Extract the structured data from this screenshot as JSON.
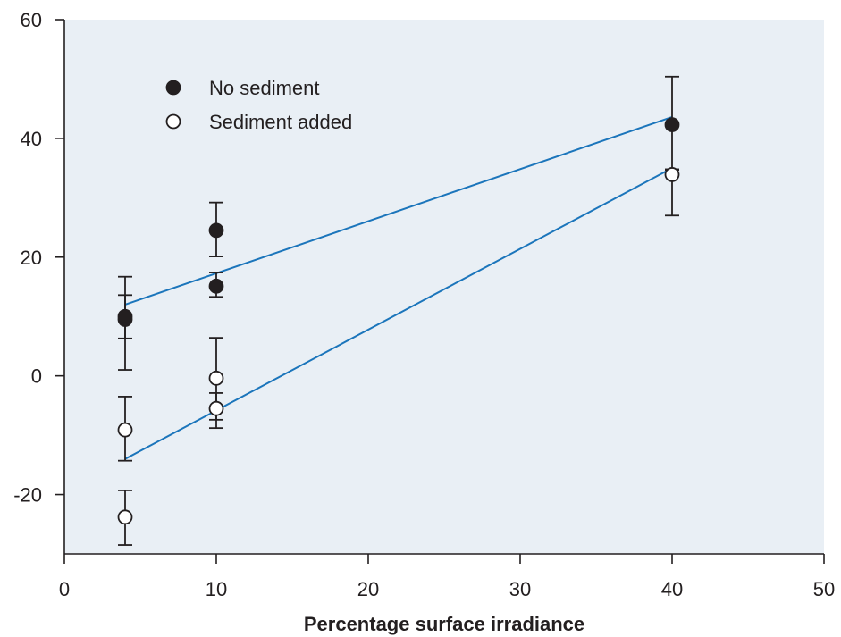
{
  "chart_data": {
    "type": "scatter",
    "title": "",
    "xlabel": "Percentage surface irradiance",
    "ylabel": "",
    "xlim": [
      0,
      50
    ],
    "ylim": [
      -30,
      60
    ],
    "xticks": [
      0,
      10,
      20,
      30,
      40,
      50
    ],
    "yticks": [
      60,
      40,
      20,
      0,
      -20
    ],
    "x_tick_labels": [
      "0",
      "10",
      "20",
      "30",
      "40",
      "50"
    ],
    "y_tick_labels": [
      "60",
      "40",
      "20",
      "0",
      "-20"
    ],
    "grid": false,
    "legend_position": "top-left",
    "colors": {
      "plot_background": "#e9eff5",
      "axis": "#231f20",
      "fit_line": "#1b75bb",
      "marker": "#231f20",
      "open_marker_fill": "#ffffff"
    },
    "series": [
      {
        "name": "No sediment",
        "marker": "filled-circle",
        "points": [
          {
            "x": 4,
            "y": 9.5,
            "err_low": 1.0,
            "err_high": 16.7
          },
          {
            "x": 4,
            "y": 10.0,
            "err_low": 6.3,
            "err_high": 13.6
          },
          {
            "x": 10,
            "y": 24.5,
            "err_low": 20.1,
            "err_high": 29.2
          },
          {
            "x": 10,
            "y": 15.1,
            "err_low": 13.3,
            "err_high": 17.4
          },
          {
            "x": 40,
            "y": 42.3,
            "err_low": 34.8,
            "err_high": 50.4
          }
        ],
        "fit": {
          "x": [
            4,
            40
          ],
          "y": [
            12.0,
            43.6
          ]
        }
      },
      {
        "name": "Sediment added",
        "marker": "open-circle",
        "points": [
          {
            "x": 4,
            "y": -9.1,
            "err_low": -14.3,
            "err_high": -3.5
          },
          {
            "x": 4,
            "y": -23.8,
            "err_low": -28.5,
            "err_high": -19.3
          },
          {
            "x": 10,
            "y": -0.4,
            "err_low": -7.4,
            "err_high": 6.4
          },
          {
            "x": 10,
            "y": -5.5,
            "err_low": -8.8,
            "err_high": -2.9
          },
          {
            "x": 40,
            "y": 33.9,
            "err_low": 27.0,
            "err_high": 34.7
          }
        ],
        "fit": {
          "x": [
            4,
            40
          ],
          "y": [
            -14.0,
            35.0
          ]
        }
      }
    ]
  }
}
